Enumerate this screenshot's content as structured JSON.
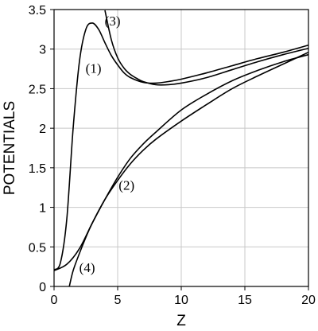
{
  "chart_data": {
    "type": "line",
    "title": "",
    "xlabel": "Z",
    "ylabel": "POTENTIALS",
    "xlim": [
      0,
      20
    ],
    "ylim": [
      0,
      3.5
    ],
    "grid": true,
    "x_ticks": [
      "0",
      "5",
      "10",
      "15",
      "20"
    ],
    "y_ticks": [
      "0",
      "0.5",
      "1",
      "1.5",
      "2",
      "2.5",
      "3",
      "3.5"
    ],
    "series": [
      {
        "name": "(1)",
        "x": [
          0,
          0.5,
          1,
          1.5,
          2,
          2.5,
          3,
          3.5,
          4,
          4.5,
          5,
          5.5,
          6,
          7,
          8,
          9,
          10,
          12,
          14,
          16,
          18,
          20
        ],
        "y": [
          0.21,
          0.3,
          0.85,
          2.0,
          2.85,
          3.25,
          3.33,
          3.25,
          3.08,
          2.92,
          2.8,
          2.7,
          2.64,
          2.58,
          2.57,
          2.59,
          2.62,
          2.7,
          2.79,
          2.88,
          2.96,
          3.05
        ]
      },
      {
        "name": "(2)",
        "x": [
          0,
          1,
          2,
          3,
          4,
          5,
          6,
          7,
          8,
          10,
          12,
          14,
          16,
          18,
          20
        ],
        "y": [
          0.2,
          0.28,
          0.48,
          0.8,
          1.1,
          1.38,
          1.62,
          1.8,
          1.95,
          2.23,
          2.43,
          2.6,
          2.73,
          2.84,
          2.93
        ]
      },
      {
        "name": "(3)",
        "x": [
          4.0,
          4.5,
          5,
          5.5,
          6,
          6.5,
          7,
          8,
          9,
          10,
          12,
          14,
          16,
          18,
          20
        ],
        "y": [
          3.49,
          3.12,
          2.89,
          2.76,
          2.68,
          2.63,
          2.59,
          2.55,
          2.55,
          2.57,
          2.64,
          2.74,
          2.84,
          2.93,
          3.01
        ]
      },
      {
        "name": "(4)",
        "x": [
          1.2,
          1.5,
          2,
          2.5,
          3,
          4,
          5,
          6,
          7,
          8,
          10,
          12,
          14,
          16,
          18,
          20
        ],
        "y": [
          0.0,
          0.2,
          0.42,
          0.62,
          0.8,
          1.1,
          1.34,
          1.55,
          1.72,
          1.86,
          2.09,
          2.3,
          2.5,
          2.66,
          2.81,
          2.96
        ]
      }
    ],
    "annotations": [
      {
        "text": "(1)",
        "x": 3.1,
        "y": 2.7
      },
      {
        "text": "(2)",
        "x": 5.7,
        "y": 1.22
      },
      {
        "text": "(3)",
        "x": 4.6,
        "y": 3.3
      },
      {
        "text": "(4)",
        "x": 2.6,
        "y": 0.18
      }
    ]
  }
}
